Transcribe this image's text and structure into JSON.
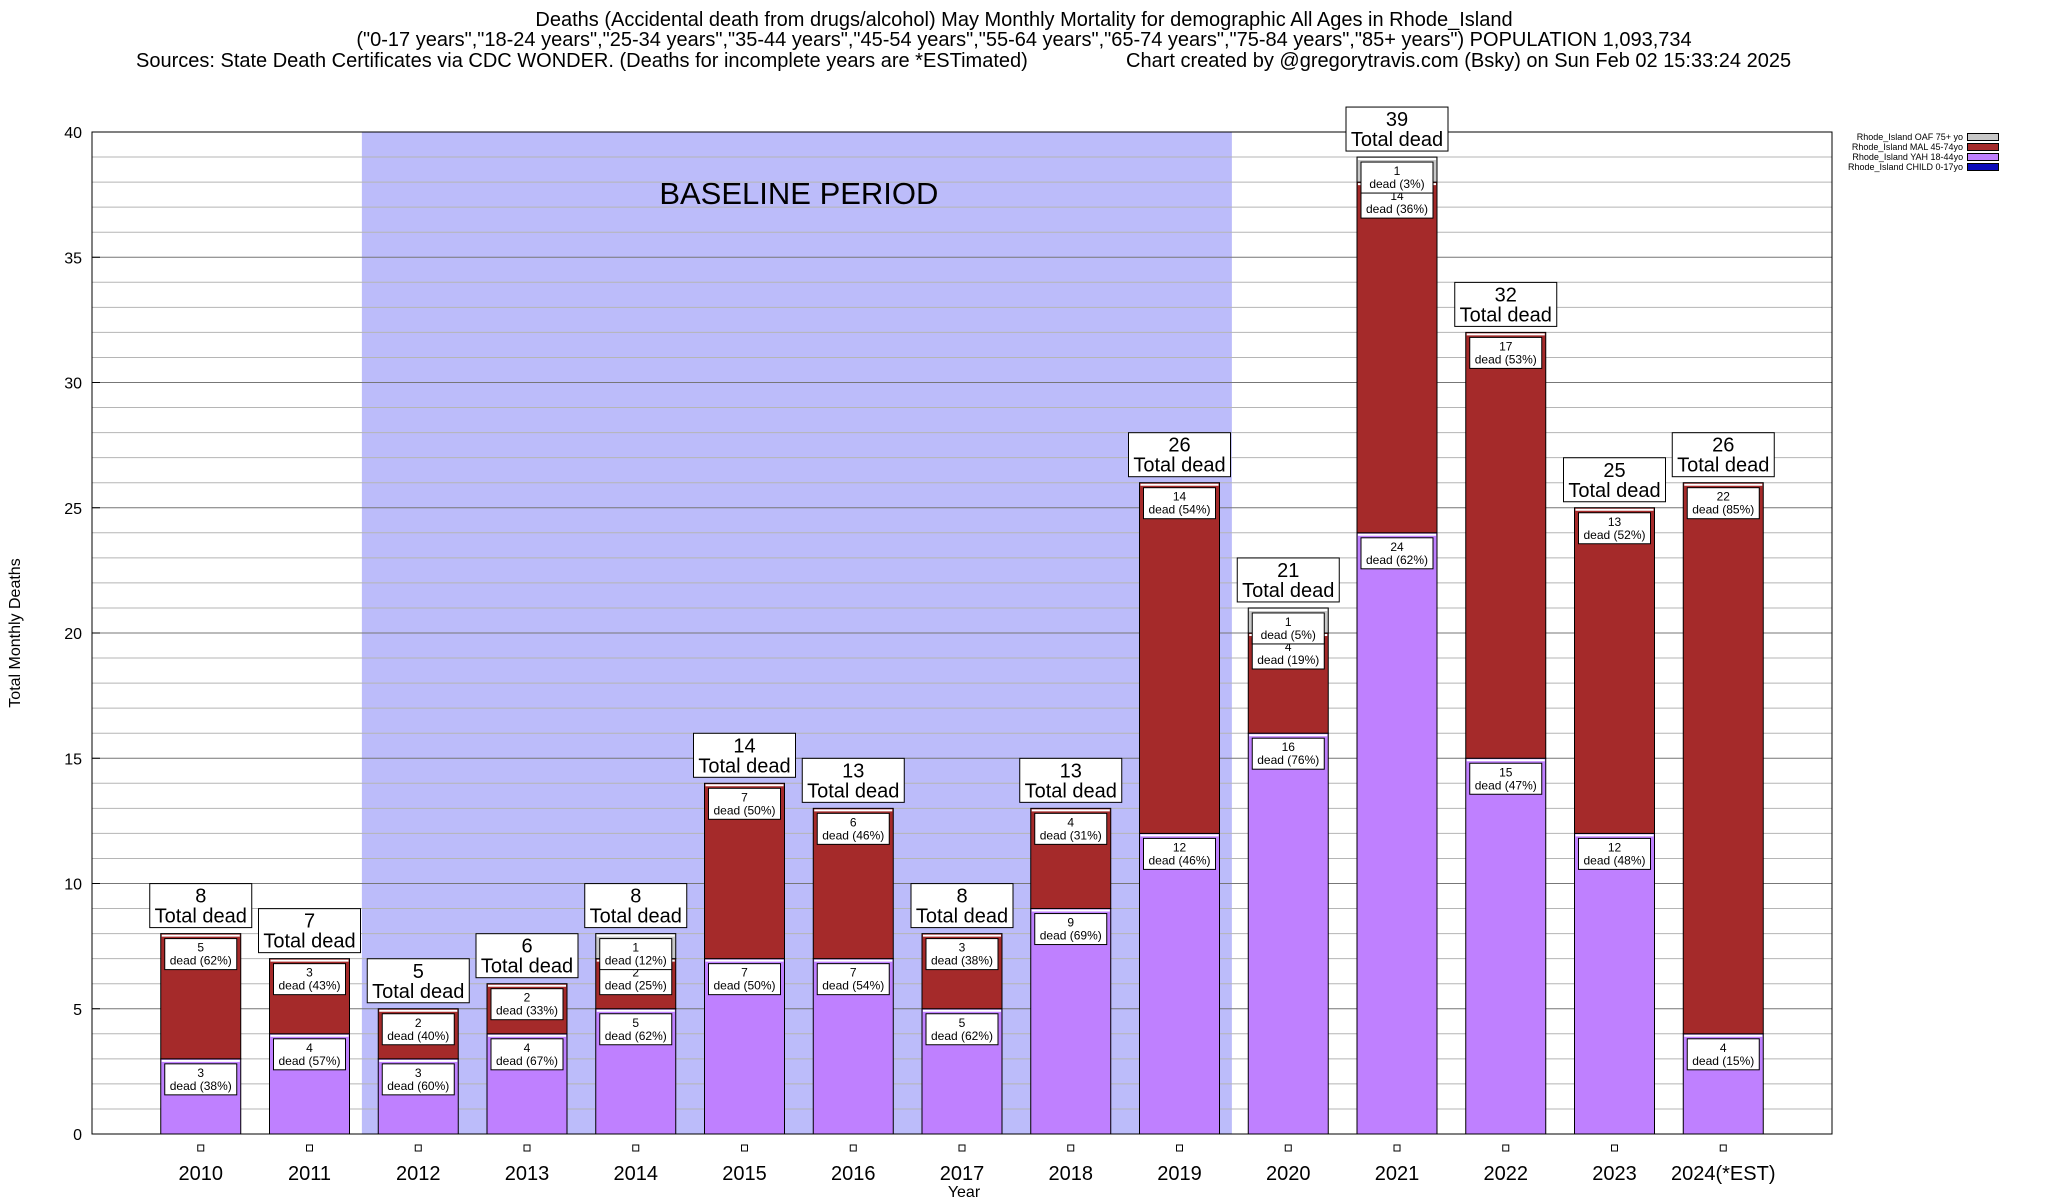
{
  "title": {
    "line1": "Deaths (Accidental death from drugs/alcohol) May Monthly Mortality for demographic All Ages in Rhode_Island",
    "line2": "(\"0-17 years\",\"18-24 years\",\"25-34 years\",\"35-44 years\",\"45-54 years\",\"55-64 years\",\"65-74 years\",\"75-84 years\",\"85+ years\") POPULATION 1,093,734",
    "line3_left": "Sources: State Death Certificates via CDC WONDER. (Deaths for incomplete years are *ESTimated)",
    "line3_right": "Chart created by @gregorytravis.com (Bsky) on Sun Feb 02 15:33:24 2025"
  },
  "chart_data": {
    "type": "bar",
    "stacked": true,
    "xlabel": "Year",
    "ylabel": "Total Monthly Deaths",
    "ylim": [
      0,
      40
    ],
    "yticks": [
      0,
      5,
      10,
      15,
      20,
      25,
      30,
      35,
      40
    ],
    "grid": true,
    "legend_position": "top-right",
    "categories": [
      "2010",
      "2011",
      "2012",
      "2013",
      "2014",
      "2015",
      "2016",
      "2017",
      "2018",
      "2019",
      "2020",
      "2021",
      "2022",
      "2023",
      "2024(*EST)"
    ],
    "series": [
      {
        "name": "Rhode_Island CHILD 0-17yo",
        "color": "#0a0aba",
        "values": [
          0,
          0,
          0,
          0,
          0,
          0,
          0,
          0,
          0,
          0,
          0,
          0,
          0,
          0,
          0
        ]
      },
      {
        "name": "Rhode_Island YAH 18-44yo",
        "color": "#bf80ff",
        "values": [
          3,
          4,
          3,
          4,
          5,
          7,
          7,
          5,
          9,
          12,
          16,
          24,
          15,
          12,
          4
        ]
      },
      {
        "name": "Rhode_Island MAL 45-74yo",
        "color": "#a52a2a",
        "values": [
          5,
          3,
          2,
          2,
          2,
          7,
          6,
          3,
          4,
          14,
          4,
          14,
          17,
          13,
          22
        ]
      },
      {
        "name": "Rhode_Island OAF 75+ yo",
        "color": "#c8c8c8",
        "values": [
          0,
          0,
          0,
          0,
          1,
          0,
          0,
          0,
          0,
          0,
          1,
          1,
          0,
          0,
          0
        ]
      }
    ],
    "segment_labels": {
      "Rhode_Island YAH 18-44yo": [
        "dead (38%)",
        "dead (57%)",
        "dead (60%)",
        "dead (67%)",
        "dead (62%)",
        "dead (50%)",
        "dead (54%)",
        "dead (62%)",
        "dead (69%)",
        "dead (46%)",
        "dead (76%)",
        "dead (62%)",
        "dead (47%)",
        "dead (48%)",
        "dead (15%)"
      ],
      "Rhode_Island MAL 45-74yo": [
        "dead (62%)",
        "dead (43%)",
        "dead (40%)",
        "dead (33%)",
        "dead (25%)",
        "dead (50%)",
        "dead (46%)",
        "dead (38%)",
        "dead (31%)",
        "dead (54%)",
        "dead (19%)",
        "dead (36%)",
        "dead (53%)",
        "dead (52%)",
        "dead (85%)"
      ],
      "Rhode_Island OAF 75+ yo": [
        "",
        "",
        "",
        "",
        "dead (12%)",
        "",
        "",
        "",
        "",
        "",
        "dead (5%)",
        "dead (3%)",
        "",
        "",
        ""
      ]
    },
    "totals": [
      8,
      7,
      5,
      6,
      8,
      14,
      13,
      8,
      13,
      26,
      21,
      39,
      32,
      25,
      26
    ],
    "total_label": "Total dead",
    "baseline": {
      "label": "BASELINE PERIOD",
      "from": "2012",
      "to": "2019",
      "color": "#bcbcfa"
    }
  }
}
